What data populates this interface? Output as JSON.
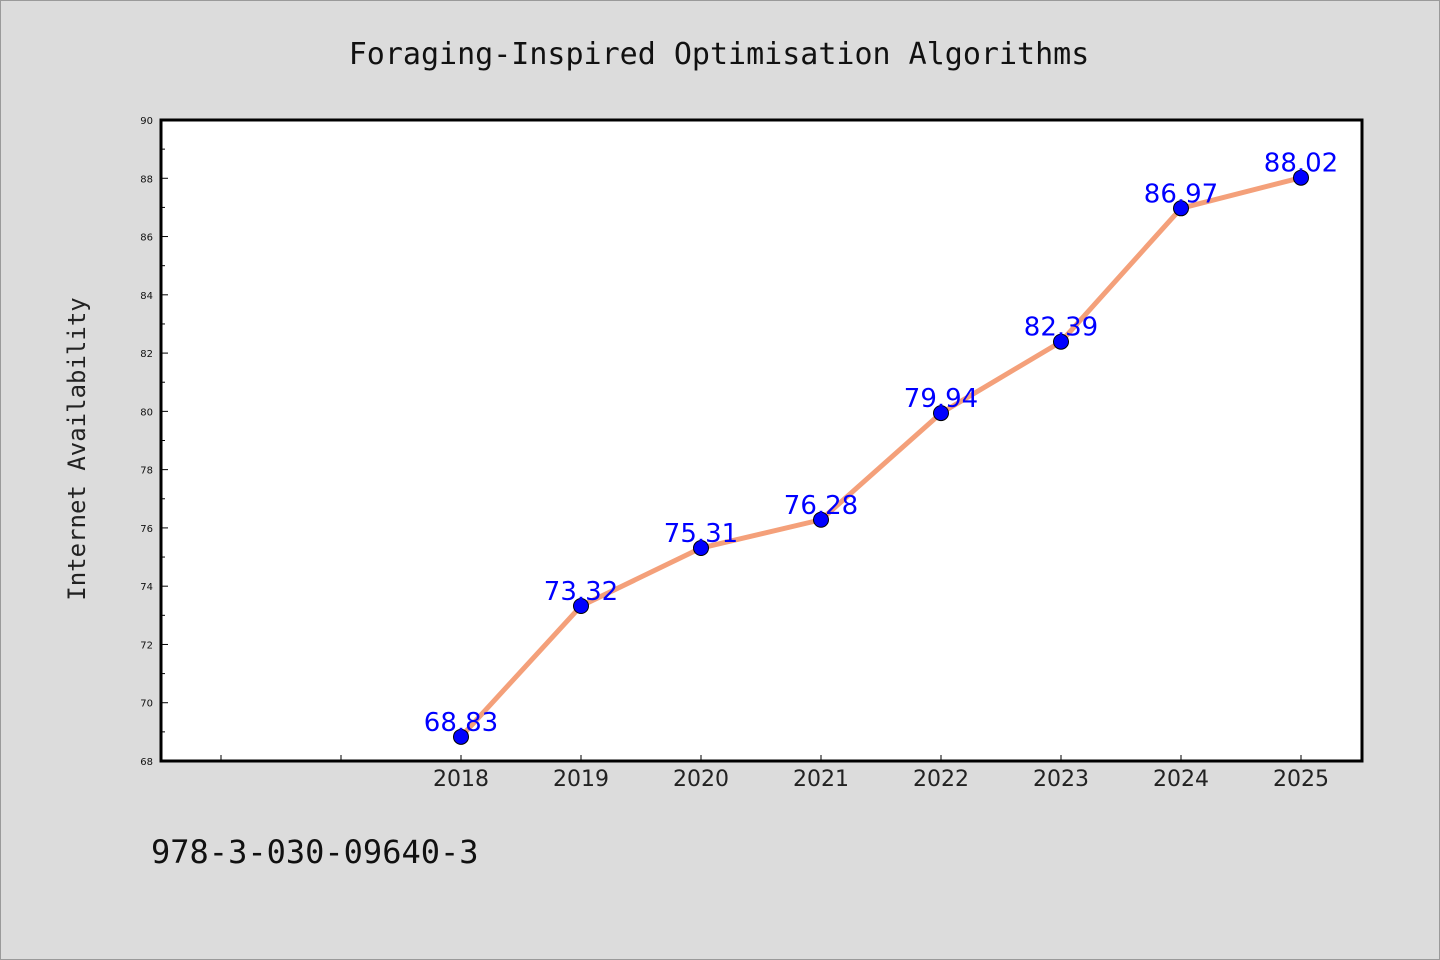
{
  "chart_data": {
    "type": "line",
    "title": "Foraging-Inspired Optimisation Algorithms",
    "xlabel": "",
    "ylabel": "Internet Availability",
    "ylim": [
      68,
      90
    ],
    "x_axis_extra_ticks": 2,
    "categories": [
      "2018",
      "2019",
      "2020",
      "2021",
      "2022",
      "2023",
      "2024",
      "2025"
    ],
    "series": [
      {
        "values": [
          68.83,
          73.32,
          75.31,
          76.28,
          79.94,
          82.39,
          86.97,
          88.02
        ],
        "labels": [
          "68.83",
          "73.32",
          "75.31",
          "76.28",
          "79.94",
          "82.39",
          "86.97",
          "88.02"
        ],
        "line_color": "#f4a07a",
        "marker_color": "#0000ff"
      }
    ],
    "yticks": [
      68,
      70,
      72,
      74,
      76,
      78,
      80,
      82,
      84,
      86,
      88,
      90
    ],
    "grid": false,
    "legend": "none"
  },
  "footer": {
    "code": "978-3-030-09640-3"
  },
  "colors": {
    "background": "#dcdcdc",
    "plot_area": "#ffffff"
  }
}
